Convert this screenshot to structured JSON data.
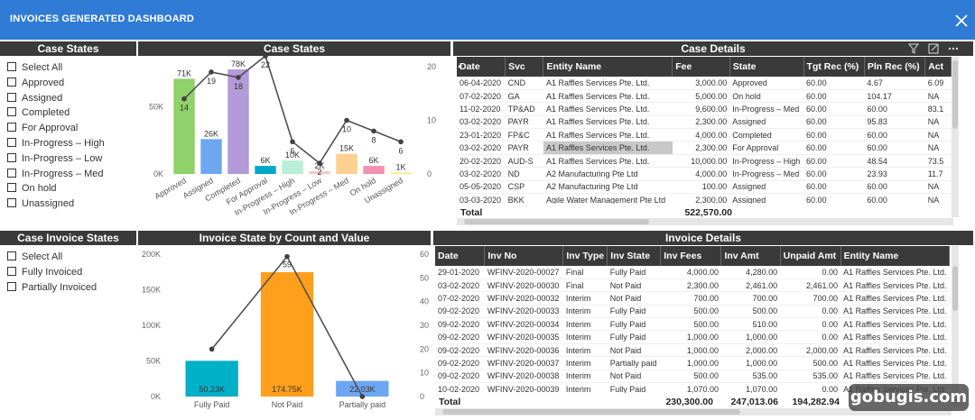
{
  "app": {
    "title": "INVOICES GENERATED DASHBOARD"
  },
  "watermark": "gobugis.com",
  "case_states_slicer": {
    "title": "Case States",
    "items": [
      "Select All",
      "Approved",
      "Assigned",
      "Completed",
      "For Approval",
      "In-Progress – High",
      "In-Progress – Low",
      "In-Progress – Med",
      "On hold",
      "Unassigned"
    ]
  },
  "invoice_states_slicer": {
    "title": "Case Invoice States",
    "items": [
      "Select All",
      "Fully Invoiced",
      "Partially Invoiced"
    ]
  },
  "case_chart": {
    "title": "Case States"
  },
  "invoice_chart": {
    "title": "Invoice State by Count and Value"
  },
  "chart_data": [
    {
      "type": "bar",
      "title": "Case States",
      "categories": [
        "Approved",
        "Assigned",
        "Completed",
        "For Approval",
        "In-Progress – High",
        "In-Progress – Low",
        "In-Progress – Med",
        "On hold",
        "Unassigned"
      ],
      "series": [
        {
          "values": [
            71000,
            26000,
            78000,
            6000,
            10000,
            2000,
            15000,
            6000,
            1000
          ],
          "labels": [
            "71K",
            "26K",
            "78K",
            "6K",
            "10K",
            "2K",
            "15K",
            "6K",
            "1K"
          ],
          "colors": [
            "#8fd16a",
            "#6da7f2",
            "#b49ad8",
            "#00a8c7",
            "#b8efd6",
            "#f9c7c7",
            "#ffd08f",
            "#f48fb1",
            "#ffe27a"
          ]
        },
        {
          "type": "line",
          "axis": "right",
          "values": [
            14,
            19,
            18,
            22,
            6,
            2,
            10,
            8,
            6
          ],
          "labels": [
            "14",
            "19",
            "18",
            "22",
            "6",
            "2",
            "10",
            "8",
            "6"
          ]
        }
      ],
      "left_ticks": [
        "0K",
        "50K"
      ],
      "ylim": [
        0,
        80000
      ],
      "right_ticks": [
        "0",
        "10",
        "20"
      ],
      "ylim_right": [
        0,
        20
      ],
      "grid": false
    },
    {
      "type": "bar",
      "title": "Invoice State by Count and Value",
      "categories": [
        "Fully Paid",
        "Not Paid",
        "Partially paid"
      ],
      "series": [
        {
          "values": [
            50230,
            174750,
            22030
          ],
          "labels": [
            "50.23K",
            "174.75K",
            "22.03K"
          ],
          "colors": [
            "#00b0c8",
            "#ff9f1c",
            "#6da7f2"
          ]
        },
        {
          "type": "line",
          "axis": "right",
          "values": [
            20,
            59,
            0
          ],
          "labels": [
            "",
            "59",
            ""
          ]
        }
      ],
      "left_ticks": [
        "0K",
        "50K",
        "100K",
        "150K",
        "200K"
      ],
      "ylim": [
        0,
        200000
      ],
      "right_ticks": [
        "0",
        "10",
        "20",
        "30",
        "40",
        "50",
        "60"
      ],
      "ylim_right": [
        0,
        60
      ],
      "grid": false
    }
  ],
  "case_details": {
    "title": "Case Details",
    "columns": [
      "Date",
      "Svc",
      "Entity Name",
      "Fee",
      "State",
      "Tgt Rec (%)",
      "Pln Rec (%)",
      "Act"
    ],
    "sort_column": "Entity Name",
    "rows": [
      [
        "06-04-2020",
        "CND",
        "A1 Raffles Services Pte. Ltd.",
        "3,000.00",
        "Approved",
        "60.00",
        "4.67",
        "6.09"
      ],
      [
        "07-02-2020",
        "GA",
        "A1 Raffles Services Pte. Ltd.",
        "5,000.00",
        "On hold",
        "60.00",
        "104.17",
        "NA"
      ],
      [
        "11-02-2020",
        "TP&AD",
        "A1 Raffles Services Pte. Ltd.",
        "9,600.00",
        "In-Progress – Med",
        "60.00",
        "60.00",
        "83.1"
      ],
      [
        "03-02-2020",
        "PAYR",
        "A1 Raffles Services Pte. Ltd.",
        "2,300.00",
        "Assigned",
        "60.00",
        "95.83",
        "NA"
      ],
      [
        "23-01-2020",
        "FP&C",
        "A1 Raffles Services Pte. Ltd.",
        "4,000.00",
        "Completed",
        "60.00",
        "60.00",
        "NA"
      ],
      [
        "03-02-2020",
        "PAYR",
        "A1 Raffles Services Pte. Ltd.",
        "2,300.00",
        "For Approval",
        "60.00",
        "60.00",
        "NA"
      ],
      [
        "20-02-2020",
        "AUD-S",
        "A1 Raffles Services Pte. Ltd.",
        "10,000.00",
        "In-Progress – High",
        "60.00",
        "48.54",
        "73.5"
      ],
      [
        "03-02-2020",
        "ND",
        "A2 Manufacturing Pte Ltd",
        "4,000.00",
        "In-Progress – Med",
        "60.00",
        "23.93",
        "11.7"
      ],
      [
        "05-05-2020",
        "CSP",
        "A2 Manufacturing Pte Ltd",
        "100.00",
        "Assigned",
        "60.00",
        "60.00",
        "NA"
      ],
      [
        "03-03-2020",
        "BKK",
        "Agile Water Management Pte Ltd",
        "2,300.00",
        "Assigned",
        "60.00",
        "60.00",
        "NA"
      ]
    ],
    "total_label": "Total",
    "total_fee": "522,570.00"
  },
  "invoice_details": {
    "title": "Invoice Details",
    "columns": [
      "Date",
      "Inv No",
      "Inv Type",
      "Inv State",
      "Inv Fees",
      "Inv Amt",
      "Unpaid Amt",
      "Entity Name"
    ],
    "rows": [
      [
        "29-01-2020",
        "WFINV-2020-00027",
        "Final",
        "Fully Paid",
        "4,000.00",
        "4,280.00",
        "0.00",
        "A1 Raffles Services Pte. Ltd."
      ],
      [
        "03-02-2020",
        "WFINV-2020-00030",
        "Final",
        "Not Paid",
        "2,300.00",
        "2,461.00",
        "2,461.00",
        "A1 Raffles Services Pte. Ltd."
      ],
      [
        "07-02-2020",
        "WFINV-2020-00032",
        "Interim",
        "Not Paid",
        "700.00",
        "700.00",
        "700.00",
        "A1 Raffles Services Pte. Ltd."
      ],
      [
        "09-02-2020",
        "WFINV-2020-00033",
        "Interim",
        "Fully Paid",
        "500.00",
        "500.00",
        "0.00",
        "A1 Raffles Services Pte. Ltd."
      ],
      [
        "09-02-2020",
        "WFINV-2020-00034",
        "Interim",
        "Fully Paid",
        "500.00",
        "510.00",
        "0.00",
        "A1 Raffles Services Pte. Ltd."
      ],
      [
        "09-02-2020",
        "WFINV-2020-00035",
        "Interim",
        "Fully Paid",
        "1,000.00",
        "1,000.00",
        "0.00",
        "A1 Raffles Services Pte. Ltd."
      ],
      [
        "09-02-2020",
        "WFINV-2020-00036",
        "Interim",
        "Not Paid",
        "1,000.00",
        "2,000.00",
        "2,000.00",
        "A1 Raffles Services Pte. Ltd."
      ],
      [
        "09-02-2020",
        "WFINV-2020-00037",
        "Interim",
        "Partially paid",
        "1,000.00",
        "1,000.00",
        "500.00",
        "A1 Raffles Services Pte. Ltd."
      ],
      [
        "09-02-2020",
        "WFINV-2020-00038",
        "Interim",
        "Not Paid",
        "500.00",
        "535.00",
        "535.00",
        "A1 Raffles Services Pte. Ltd."
      ],
      [
        "10-02-2020",
        "WFINV-2020-00039",
        "Interim",
        "Fully Paid",
        "1,070.00",
        "1,070.00",
        "0.00",
        "A1 Raffles Services Pte. Ltd."
      ]
    ],
    "total_label": "Total",
    "total_fees": "230,300.00",
    "total_amt": "247,013.06",
    "total_unpaid": "194,282.94"
  }
}
